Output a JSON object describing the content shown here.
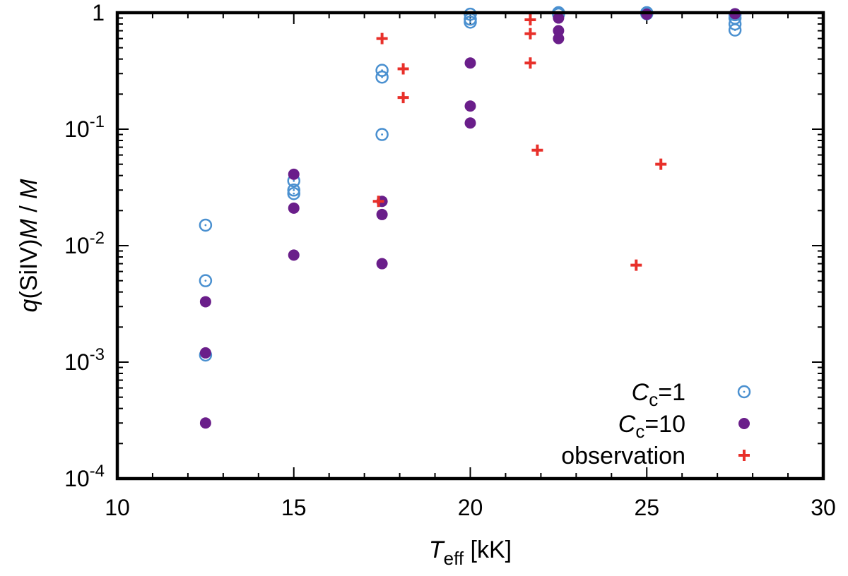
{
  "chart_data": {
    "type": "scatter",
    "xlabel": {
      "main": "T",
      "sub": "eff",
      "unit": "[kK]"
    },
    "ylabel": {
      "q": "q",
      "rest": "(SiIV)",
      "m1": "M",
      "slash": " / ",
      "m2": "M",
      "dot": "·"
    },
    "x_range": [
      10,
      30
    ],
    "y_range": [
      0.0001,
      1
    ],
    "y_scale": "log",
    "x_ticks": [
      10,
      15,
      20,
      25,
      30
    ],
    "x_tick_labels": [
      "10",
      "15",
      "20",
      "25",
      "30"
    ],
    "y_ticks": [
      {
        "value": 0.0001,
        "base": "10",
        "exp": "-4"
      },
      {
        "value": 0.001,
        "base": "10",
        "exp": "-3"
      },
      {
        "value": 0.01,
        "base": "10",
        "exp": "-2"
      },
      {
        "value": 0.1,
        "base": "10",
        "exp": "-1"
      },
      {
        "value": 1,
        "base": "1",
        "exp": ""
      }
    ],
    "legend_position": "bottom-right",
    "series": [
      {
        "name": "Cc=1",
        "legend": {
          "main": "C",
          "sub": "c",
          "rest": "=1"
        },
        "marker": "open-circle",
        "color": "#4a90d0",
        "points": [
          [
            12.5,
            0.015
          ],
          [
            12.5,
            0.005
          ],
          [
            12.5,
            0.00115
          ],
          [
            15,
            0.036
          ],
          [
            15,
            0.03
          ],
          [
            15,
            0.028
          ],
          [
            17.5,
            0.32
          ],
          [
            17.5,
            0.28
          ],
          [
            17.5,
            0.09
          ],
          [
            20,
            0.97
          ],
          [
            20,
            0.88
          ],
          [
            20,
            0.83
          ],
          [
            22.5,
            1.0
          ],
          [
            22.5,
            0.97
          ],
          [
            25,
            1.0
          ],
          [
            25,
            0.98
          ],
          [
            27.5,
            0.96
          ],
          [
            27.5,
            0.9
          ],
          [
            27.5,
            0.8
          ],
          [
            27.5,
            0.71
          ]
        ]
      },
      {
        "name": "Cc=10",
        "legend": {
          "main": "C",
          "sub": "c",
          "rest": "=10"
        },
        "marker": "filled-circle",
        "color": "#6a1e8a",
        "points": [
          [
            12.5,
            0.0033
          ],
          [
            12.5,
            0.0012
          ],
          [
            12.5,
            0.0003
          ],
          [
            15,
            0.041
          ],
          [
            15,
            0.021
          ],
          [
            15,
            0.0083
          ],
          [
            17.5,
            0.024
          ],
          [
            17.5,
            0.0185
          ],
          [
            17.5,
            0.007
          ],
          [
            20,
            0.37
          ],
          [
            20,
            0.158
          ],
          [
            20,
            0.113
          ],
          [
            22.5,
            0.9
          ],
          [
            22.5,
            0.7
          ],
          [
            22.5,
            0.6
          ],
          [
            25,
            0.97
          ],
          [
            27.5,
            0.98
          ]
        ]
      },
      {
        "name": "observation",
        "legend": {
          "main": "observation",
          "sub": "",
          "rest": ""
        },
        "marker": "plus",
        "color": "#e8302a",
        "points": [
          [
            17.5,
            0.6
          ],
          [
            18.1,
            0.33
          ],
          [
            18.1,
            0.187
          ],
          [
            17.4,
            0.024
          ],
          [
            21.7,
            0.87
          ],
          [
            21.7,
            0.66
          ],
          [
            21.7,
            0.37
          ],
          [
            21.9,
            0.066
          ],
          [
            24.7,
            0.0068
          ],
          [
            25.4,
            0.05
          ]
        ]
      }
    ]
  }
}
